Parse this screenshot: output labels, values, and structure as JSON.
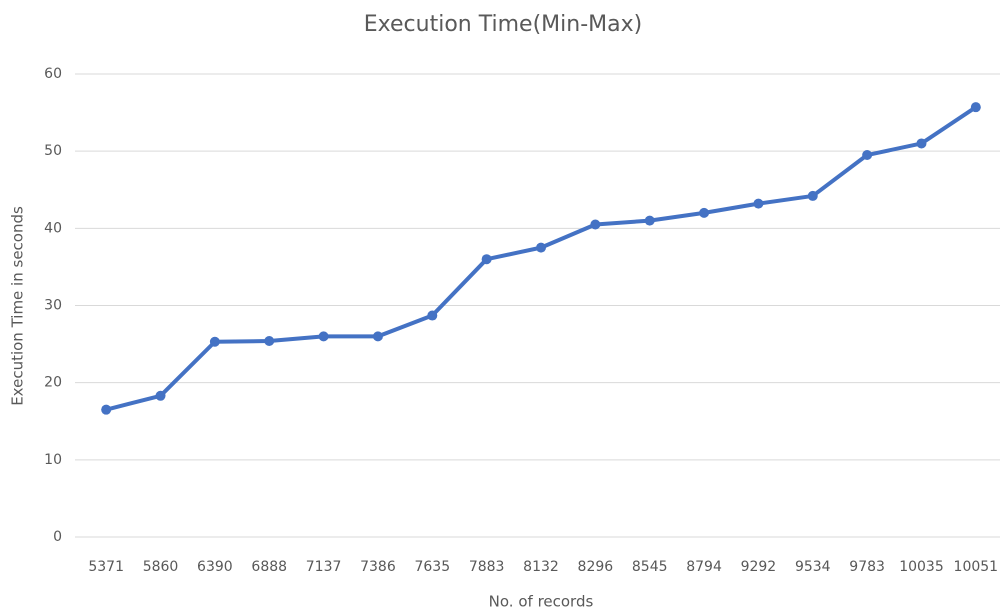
{
  "chart_data": {
    "type": "line",
    "title": "Execution Time(Min-Max)",
    "x_label": "No. of records",
    "y_label": "Execution Time in seconds",
    "categories": [
      "5371",
      "5860",
      "6390",
      "6888",
      "7137",
      "7386",
      "7635",
      "7883",
      "8132",
      "8296",
      "8545",
      "8794",
      "9292",
      "9534",
      "9783",
      "10035",
      "10051"
    ],
    "series": [
      {
        "name": "Execution Time",
        "color": "#4472c4",
        "values": [
          16.5,
          18.3,
          25.3,
          25.4,
          26,
          26,
          28.7,
          36,
          37.5,
          40.5,
          41,
          42,
          43.2,
          44.2,
          49.5,
          51,
          55.7
        ]
      }
    ],
    "ylim": [
      0,
      60
    ],
    "yticks": [
      0,
      10,
      20,
      30,
      40,
      50,
      60
    ],
    "grid": true
  }
}
